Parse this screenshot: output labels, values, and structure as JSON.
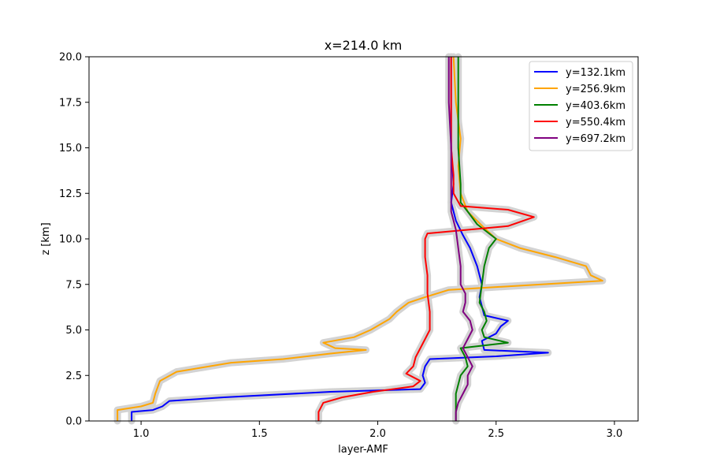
{
  "chart_data": {
    "type": "line",
    "title": "x=214.0 km",
    "xlabel": "layer-AMF",
    "ylabel": "z [km]",
    "xlim": [
      0.78,
      3.1
    ],
    "ylim": [
      0,
      20
    ],
    "xticks": [
      "1.0",
      "1.5",
      "2.0",
      "2.5",
      "3.0"
    ],
    "yticks": [
      "0.0",
      "2.5",
      "5.0",
      "7.5",
      "10.0",
      "12.5",
      "15.0",
      "17.5",
      "20.0"
    ],
    "legend_position": "top-right",
    "uncertainty_band_color": "#d3d3d3",
    "series": [
      {
        "name": "y=132.1km",
        "color": "#0000ff",
        "points": [
          [
            0.96,
            0
          ],
          [
            0.96,
            0.5
          ],
          [
            1.05,
            0.6
          ],
          [
            1.09,
            0.8
          ],
          [
            1.12,
            1.1
          ],
          [
            1.35,
            1.3
          ],
          [
            1.8,
            1.6
          ],
          [
            2.18,
            1.75
          ],
          [
            2.2,
            2.1
          ],
          [
            2.19,
            2.5
          ],
          [
            2.2,
            3.0
          ],
          [
            2.22,
            3.4
          ],
          [
            2.5,
            3.55
          ],
          [
            2.72,
            3.75
          ],
          [
            2.45,
            3.9
          ],
          [
            2.44,
            4.4
          ],
          [
            2.5,
            4.8
          ],
          [
            2.52,
            5.2
          ],
          [
            2.55,
            5.5
          ],
          [
            2.45,
            5.8
          ],
          [
            2.44,
            6.3
          ],
          [
            2.43,
            6.8
          ],
          [
            2.44,
            7.5
          ],
          [
            2.42,
            8.5
          ],
          [
            2.39,
            9.5
          ],
          [
            2.36,
            10.2
          ],
          [
            2.33,
            11.0
          ],
          [
            2.31,
            12.0
          ],
          [
            2.32,
            13
          ],
          [
            2.31,
            15
          ],
          [
            2.31,
            17.5
          ],
          [
            2.31,
            20
          ]
        ]
      },
      {
        "name": "y=256.9km",
        "color": "#ffa500",
        "points": [
          [
            0.9,
            0
          ],
          [
            0.9,
            0.6
          ],
          [
            1.0,
            0.8
          ],
          [
            1.05,
            1.0
          ],
          [
            1.06,
            1.5
          ],
          [
            1.08,
            2.2
          ],
          [
            1.15,
            2.7
          ],
          [
            1.38,
            3.2
          ],
          [
            1.6,
            3.4
          ],
          [
            1.8,
            3.7
          ],
          [
            1.95,
            3.9
          ],
          [
            1.82,
            4.0
          ],
          [
            1.77,
            4.3
          ],
          [
            1.9,
            4.6
          ],
          [
            1.97,
            5.0
          ],
          [
            2.05,
            5.6
          ],
          [
            2.08,
            6.0
          ],
          [
            2.13,
            6.5
          ],
          [
            2.2,
            6.8
          ],
          [
            2.3,
            7.2
          ],
          [
            2.95,
            7.7
          ],
          [
            2.9,
            8.0
          ],
          [
            2.88,
            8.5
          ],
          [
            2.75,
            9.0
          ],
          [
            2.6,
            9.5
          ],
          [
            2.5,
            10.0
          ],
          [
            2.45,
            10.6
          ],
          [
            2.38,
            11.5
          ],
          [
            2.35,
            12.5
          ],
          [
            2.34,
            14
          ],
          [
            2.35,
            15.5
          ],
          [
            2.33,
            17.5
          ],
          [
            2.32,
            20
          ]
        ]
      },
      {
        "name": "y=403.6km",
        "color": "#008000",
        "points": [
          [
            2.33,
            0
          ],
          [
            2.33,
            0.5
          ],
          [
            2.33,
            1.0
          ],
          [
            2.33,
            1.5
          ],
          [
            2.34,
            2.0
          ],
          [
            2.35,
            2.5
          ],
          [
            2.38,
            3.0
          ],
          [
            2.37,
            3.5
          ],
          [
            2.35,
            4.0
          ],
          [
            2.55,
            4.3
          ],
          [
            2.45,
            4.6
          ],
          [
            2.44,
            5.0
          ],
          [
            2.46,
            5.5
          ],
          [
            2.45,
            6.0
          ],
          [
            2.43,
            6.5
          ],
          [
            2.44,
            7.5
          ],
          [
            2.45,
            8.5
          ],
          [
            2.47,
            9.5
          ],
          [
            2.5,
            10.0
          ],
          [
            2.42,
            10.8
          ],
          [
            2.38,
            11.5
          ],
          [
            2.35,
            12.0
          ],
          [
            2.35,
            13
          ],
          [
            2.34,
            15
          ],
          [
            2.34,
            17.5
          ],
          [
            2.34,
            20
          ]
        ]
      },
      {
        "name": "y=550.4km",
        "color": "#ff0000",
        "points": [
          [
            1.75,
            0
          ],
          [
            1.75,
            0.5
          ],
          [
            1.77,
            1.0
          ],
          [
            1.85,
            1.3
          ],
          [
            1.98,
            1.6
          ],
          [
            2.15,
            1.9
          ],
          [
            2.18,
            2.2
          ],
          [
            2.12,
            2.6
          ],
          [
            2.15,
            3.0
          ],
          [
            2.16,
            3.5
          ],
          [
            2.18,
            4.0
          ],
          [
            2.2,
            4.5
          ],
          [
            2.22,
            5.0
          ],
          [
            2.22,
            5.6
          ],
          [
            2.22,
            6.0
          ],
          [
            2.21,
            7.0
          ],
          [
            2.21,
            8.0
          ],
          [
            2.2,
            9.0
          ],
          [
            2.2,
            10.0
          ],
          [
            2.21,
            10.3
          ],
          [
            2.55,
            10.7
          ],
          [
            2.66,
            11.2
          ],
          [
            2.55,
            11.6
          ],
          [
            2.35,
            11.8
          ],
          [
            2.32,
            12.5
          ],
          [
            2.32,
            13.5
          ],
          [
            2.31,
            15
          ],
          [
            2.31,
            17.5
          ],
          [
            2.31,
            20
          ]
        ]
      },
      {
        "name": "y=697.2km",
        "color": "#800080",
        "points": [
          [
            2.33,
            0
          ],
          [
            2.33,
            0.5
          ],
          [
            2.34,
            1.0
          ],
          [
            2.36,
            1.5
          ],
          [
            2.38,
            2.0
          ],
          [
            2.38,
            2.5
          ],
          [
            2.4,
            3.0
          ],
          [
            2.38,
            3.5
          ],
          [
            2.36,
            4.0
          ],
          [
            2.38,
            4.5
          ],
          [
            2.4,
            5.0
          ],
          [
            2.39,
            5.5
          ],
          [
            2.36,
            6.0
          ],
          [
            2.37,
            6.5
          ],
          [
            2.37,
            7.0
          ],
          [
            2.35,
            7.5
          ],
          [
            2.35,
            8.5
          ],
          [
            2.34,
            9.5
          ],
          [
            2.33,
            10.5
          ],
          [
            2.31,
            11.5
          ],
          [
            2.31,
            12.5
          ],
          [
            2.31,
            13.5
          ],
          [
            2.31,
            15
          ],
          [
            2.3,
            17.5
          ],
          [
            2.3,
            20
          ]
        ]
      }
    ]
  }
}
